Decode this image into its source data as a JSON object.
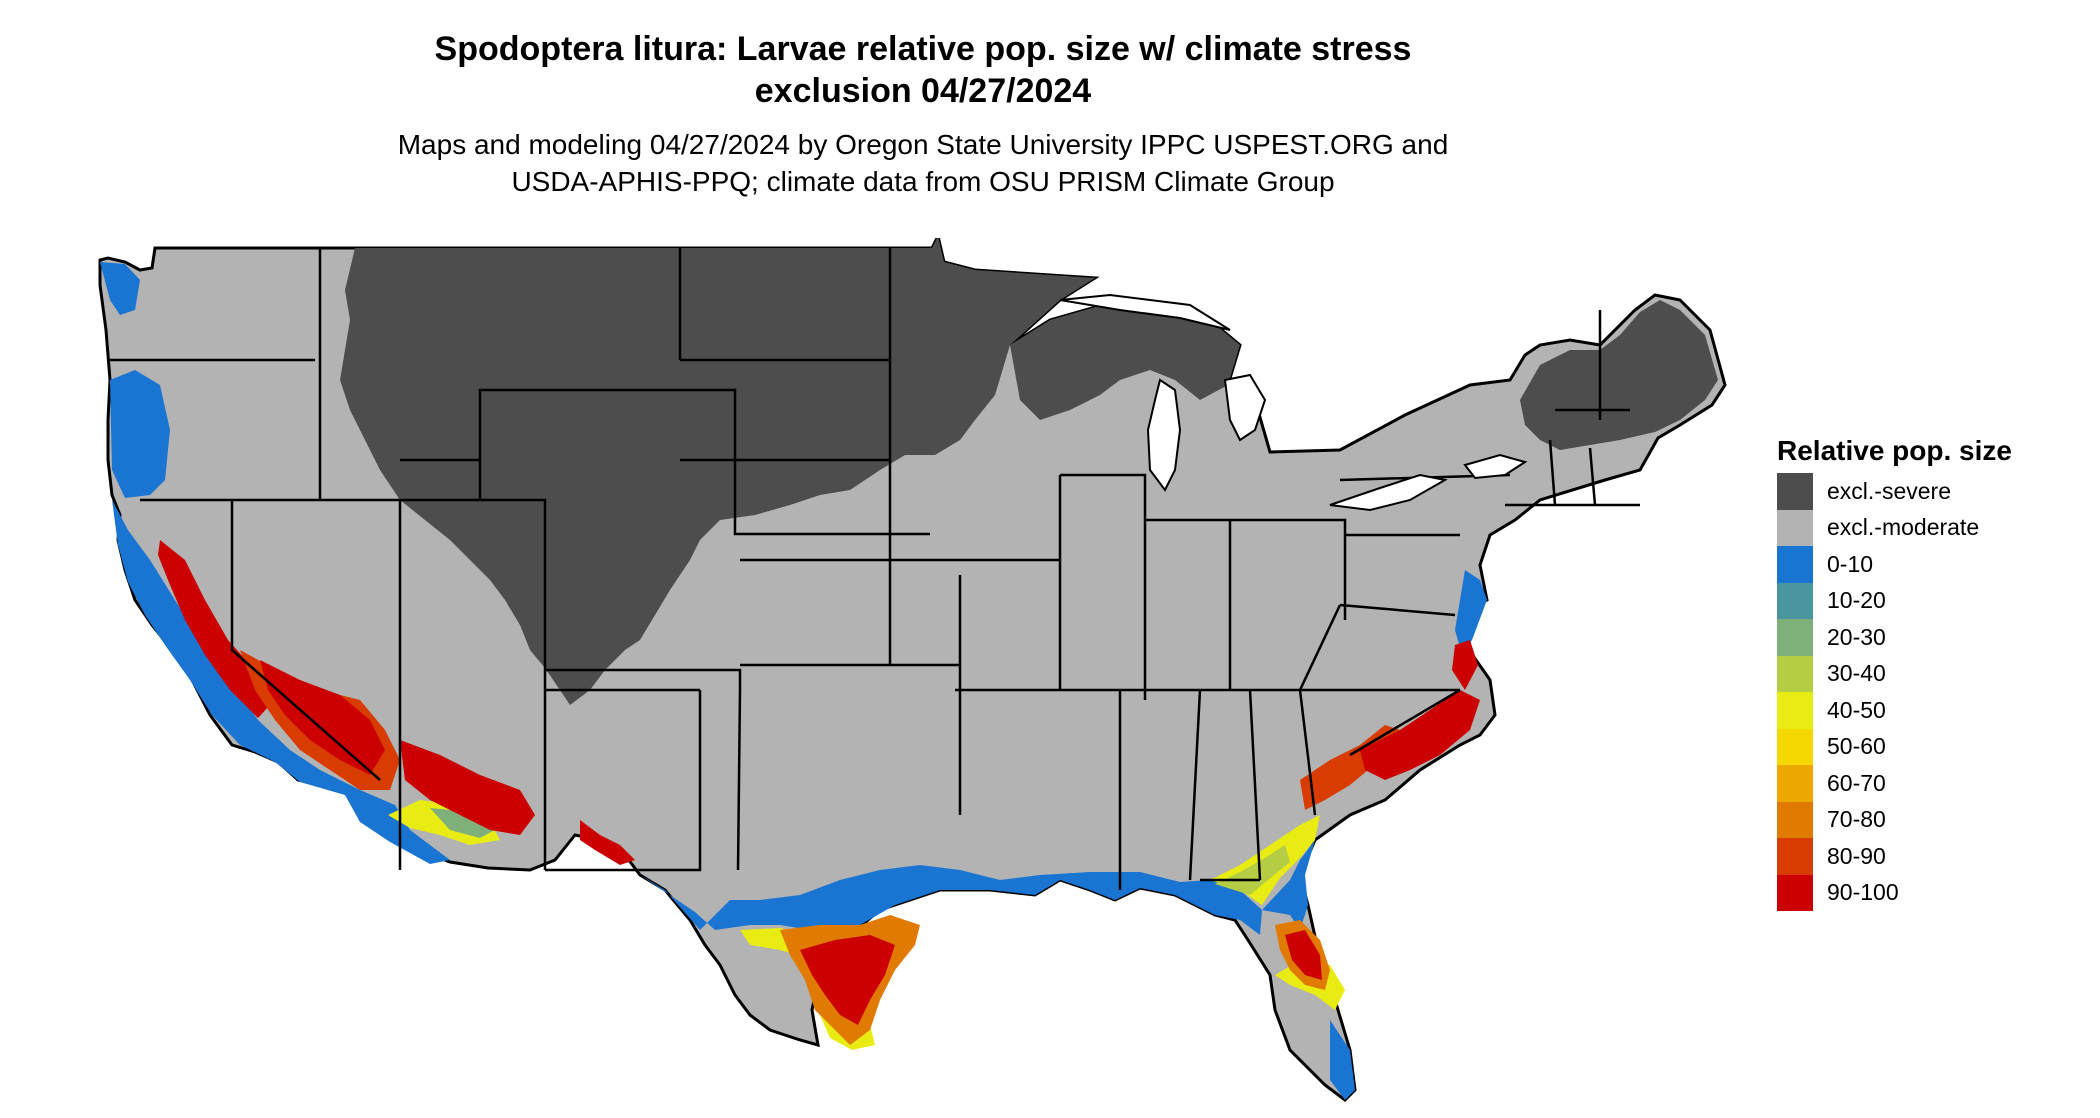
{
  "title": {
    "line1": "Spodoptera litura: Larvae relative pop. size w/ climate stress",
    "line2": "exclusion 04/27/2024"
  },
  "subtitle": {
    "line1": "Maps and modeling 04/27/2024 by Oregon State University IPPC USPEST.ORG and",
    "line2": "USDA-APHIS-PPQ; climate data from OSU PRISM Climate Group"
  },
  "legend": {
    "title": "Relative pop. size",
    "items": [
      {
        "label": "excl.-severe",
        "color": "#4d4d4d"
      },
      {
        "label": "excl.-moderate",
        "color": "#b3b3b3"
      },
      {
        "label": "0-10",
        "color": "#1a75d2"
      },
      {
        "label": "10-20",
        "color": "#4a96a0"
      },
      {
        "label": "20-30",
        "color": "#7fb07a"
      },
      {
        "label": "30-40",
        "color": "#b5cc45"
      },
      {
        "label": "40-50",
        "color": "#e8ec12"
      },
      {
        "label": "50-60",
        "color": "#f5d800"
      },
      {
        "label": "60-70",
        "color": "#eda800"
      },
      {
        "label": "70-80",
        "color": "#e07a00"
      },
      {
        "label": "80-90",
        "color": "#d83c00"
      },
      {
        "label": "90-100",
        "color": "#cc0000"
      }
    ]
  }
}
